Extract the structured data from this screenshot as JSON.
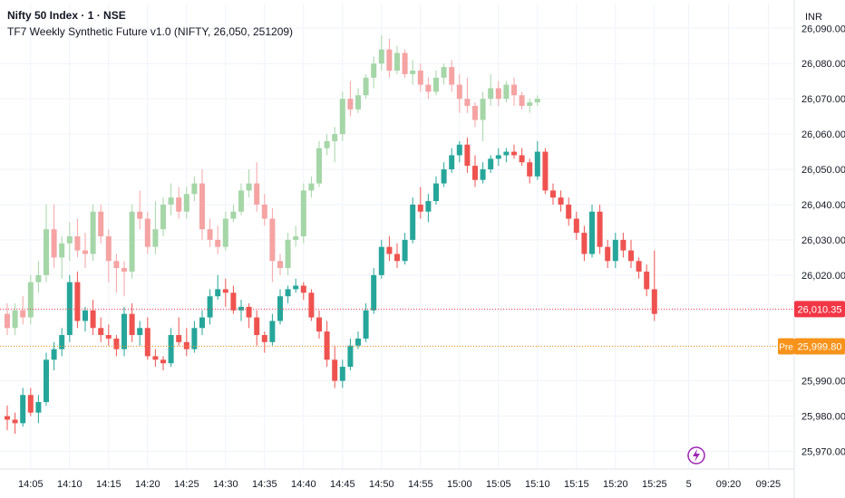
{
  "symbol_title": "Nifty 50 Index · 1 · NSE",
  "indicator_title": "TF7 Weekly Synthetic Future v1.0 (NIFTY, 26,050, 251209)",
  "currency_label": "INR",
  "pre_badge_label": "Pre",
  "colors": {
    "up_main": "#26a69a",
    "down_main": "#ef5350",
    "up_synth": "#a5d6a7",
    "down_synth": "#f5a3a3",
    "last_price": "#f23645",
    "pre_price": "#f7931a",
    "grid": "#f0f3fa",
    "text": "#131722",
    "lightning": "#9c27b0"
  },
  "icons": {
    "lightning": "lightning-bolt-icon"
  },
  "chart_data": {
    "type": "candlestick",
    "ylim": [
      25965,
      26097
    ],
    "yticks": [
      25970,
      25980,
      25990,
      26000,
      26010,
      26020,
      26030,
      26040,
      26050,
      26060,
      26070,
      26080,
      26090
    ],
    "ytick_labels": [
      "25,970.00",
      "25,980.00",
      "25,990.00",
      "26,000.00",
      "26,010.00",
      "26,020.00",
      "26,030.00",
      "26,040.00",
      "26,050.00",
      "26,060.00",
      "26,070.00",
      "26,080.00",
      "26,090.00"
    ],
    "xtick_labels": [
      {
        "index": 3,
        "label": "14:05"
      },
      {
        "index": 8,
        "label": "14:10"
      },
      {
        "index": 13,
        "label": "14:15"
      },
      {
        "index": 18,
        "label": "14:20"
      },
      {
        "index": 23,
        "label": "14:25"
      },
      {
        "index": 28,
        "label": "14:30"
      },
      {
        "index": 33,
        "label": "14:35"
      },
      {
        "index": 38,
        "label": "14:40"
      },
      {
        "index": 43,
        "label": "14:45"
      },
      {
        "index": 48,
        "label": "14:50"
      },
      {
        "index": 53,
        "label": "14:55"
      },
      {
        "index": 58,
        "label": "15:00"
      },
      {
        "index": 63,
        "label": "15:05"
      },
      {
        "index": 68,
        "label": "15:10"
      },
      {
        "index": 73,
        "label": "15:15"
      },
      {
        "index": 78,
        "label": "15:20"
      },
      {
        "index": 83,
        "label": "15:25"
      },
      {
        "index": 87.4,
        "label": "5"
      },
      {
        "index": 92.5,
        "label": "09:20"
      },
      {
        "index": 97.6,
        "label": "09:25"
      }
    ],
    "last_price": 26010.35,
    "last_price_label": "26,010.35",
    "pre_price": 25999.8,
    "pre_price_label": "25,999.80",
    "series": [
      {
        "name": "Nifty 50 Index",
        "candles": [
          [
            25980,
            25983,
            25976,
            25979
          ],
          [
            25979,
            25981,
            25975,
            25978
          ],
          [
            25978,
            25988,
            25977,
            25986
          ],
          [
            25986,
            25988,
            25980,
            25981
          ],
          [
            25981,
            25986,
            25978,
            25984
          ],
          [
            25984,
            25998,
            25983,
            25996
          ],
          [
            25996,
            26001,
            25993,
            25999
          ],
          [
            25999,
            26005,
            25997,
            26003
          ],
          [
            26003,
            26020,
            26001,
            26018
          ],
          [
            26018,
            26021,
            26005,
            26007
          ],
          [
            26007,
            26011,
            26004,
            26010
          ],
          [
            26010,
            26013,
            26003,
            26005
          ],
          [
            26005,
            26008,
            26001,
            26003
          ],
          [
            26003,
            26006,
            26000,
            26002
          ],
          [
            26002,
            26003,
            25997,
            25999
          ],
          [
            25999,
            26011,
            25997,
            26009
          ],
          [
            26009,
            26012,
            26001,
            26003
          ],
          [
            26003,
            26007,
            26000,
            26005
          ],
          [
            26005,
            26008,
            25996,
            25997
          ],
          [
            25997,
            25999,
            25994,
            25996
          ],
          [
            25996,
            25997,
            25993,
            25995
          ],
          [
            25995,
            26005,
            25994,
            26003
          ],
          [
            26003,
            26008,
            26000,
            26001
          ],
          [
            26001,
            26005,
            25997,
            25999
          ],
          [
            25999,
            26007,
            25998,
            26005
          ],
          [
            26005,
            26010,
            26003,
            26008
          ],
          [
            26008,
            26016,
            26006,
            26014
          ],
          [
            26014,
            26020,
            26013,
            26016
          ],
          [
            26016,
            26019,
            26011,
            26015
          ],
          [
            26015,
            26017,
            26009,
            26010
          ],
          [
            26010,
            26013,
            26007,
            26011
          ],
          [
            26011,
            26012,
            26005,
            26008
          ],
          [
            26008,
            26010,
            26000,
            26003
          ],
          [
            26003,
            26004,
            25998,
            26001
          ],
          [
            26001,
            26009,
            26000,
            26007
          ],
          [
            26007,
            26016,
            26006,
            26014
          ],
          [
            26014,
            26017,
            26012,
            26016
          ],
          [
            26016,
            26019,
            26015,
            26017
          ],
          [
            26017,
            26018,
            26013,
            26015
          ],
          [
            26015,
            26016,
            26007,
            26008
          ],
          [
            26008,
            26010,
            26002,
            26004
          ],
          [
            26004,
            26007,
            25994,
            25996
          ],
          [
            25996,
            26000,
            25988,
            25990
          ],
          [
            25990,
            25996,
            25988,
            25994
          ],
          [
            25994,
            26002,
            25993,
            26000
          ],
          [
            26000,
            26004,
            25999,
            26002
          ],
          [
            26002,
            26012,
            26001,
            26010
          ],
          [
            26010,
            26022,
            26009,
            26020
          ],
          [
            26020,
            26030,
            26019,
            26028
          ],
          [
            26028,
            26031,
            26024,
            26026
          ],
          [
            26026,
            26029,
            26022,
            26024
          ],
          [
            26024,
            26032,
            26023,
            26030
          ],
          [
            26030,
            26042,
            26029,
            26040
          ],
          [
            26040,
            26045,
            26036,
            26038
          ],
          [
            26038,
            26043,
            26035,
            26041
          ],
          [
            26041,
            26048,
            26040,
            26046
          ],
          [
            26046,
            26052,
            26045,
            26050
          ],
          [
            26050,
            26056,
            26049,
            26054
          ],
          [
            26054,
            26058,
            26052,
            26057
          ],
          [
            26057,
            26059,
            26049,
            26051
          ],
          [
            26051,
            26054,
            26045,
            26047
          ],
          [
            26047,
            26052,
            26046,
            26050
          ],
          [
            26050,
            26054,
            26049,
            26053
          ],
          [
            26053,
            26056,
            26051,
            26054
          ],
          [
            26054,
            26056,
            26052,
            26055
          ],
          [
            26055,
            26057,
            26053,
            26054
          ],
          [
            26054,
            26056,
            26051,
            26052
          ],
          [
            26052,
            26053,
            26046,
            26048
          ],
          [
            26048,
            26058,
            26047,
            26055
          ],
          [
            26055,
            26056,
            26043,
            26044
          ],
          [
            26044,
            26046,
            26040,
            26042
          ],
          [
            26042,
            26044,
            26038,
            26040
          ],
          [
            26040,
            26042,
            26034,
            26036
          ],
          [
            26036,
            26038,
            26030,
            26032
          ],
          [
            26032,
            26034,
            26024,
            26026
          ],
          [
            26026,
            26040,
            26025,
            26038
          ],
          [
            26038,
            26040,
            26026,
            26028
          ],
          [
            26028,
            26030,
            26022,
            26024
          ],
          [
            26024,
            26032,
            26022,
            26030
          ],
          [
            26030,
            26032,
            26025,
            26027
          ],
          [
            26027,
            26030,
            26022,
            26024
          ],
          [
            26024,
            26025,
            26019,
            26021
          ],
          [
            26021,
            26023,
            26014,
            26016
          ],
          [
            26016,
            26027,
            26007,
            26009
          ]
        ]
      },
      {
        "name": "TF7 Weekly Synthetic Future v1.0",
        "candles": [
          [
            26009,
            26012,
            26003,
            26005
          ],
          [
            26005,
            26012,
            26003,
            26010
          ],
          [
            26010,
            26014,
            26006,
            26008
          ],
          [
            26008,
            26020,
            26006,
            26018
          ],
          [
            26018,
            26024,
            26015,
            26020
          ],
          [
            26020,
            26040,
            26018,
            26033
          ],
          [
            26033,
            26040,
            26022,
            26025
          ],
          [
            26025,
            26031,
            26019,
            26029
          ],
          [
            26029,
            26035,
            26024,
            26031
          ],
          [
            26031,
            26036,
            26025,
            26027
          ],
          [
            26027,
            26032,
            26022,
            26026
          ],
          [
            26026,
            26040,
            26024,
            26038
          ],
          [
            26038,
            26040,
            26029,
            26031
          ],
          [
            26031,
            26033,
            26018,
            26024
          ],
          [
            26024,
            26026,
            26015,
            26022
          ],
          [
            26022,
            26024,
            26014,
            26021
          ],
          [
            26021,
            26040,
            26019,
            26038
          ],
          [
            26038,
            26044,
            26033,
            26036
          ],
          [
            26036,
            26038,
            26026,
            26028
          ],
          [
            26028,
            26041,
            26026,
            26033
          ],
          [
            26033,
            26042,
            26031,
            26040
          ],
          [
            26040,
            26046,
            26037,
            26042
          ],
          [
            26042,
            26045,
            26036,
            26038
          ],
          [
            26038,
            26045,
            26036,
            26043
          ],
          [
            26043,
            26048,
            26041,
            26046
          ],
          [
            26046,
            26050,
            26030,
            26033
          ],
          [
            26033,
            26036,
            26028,
            26030
          ],
          [
            26030,
            26034,
            26026,
            26028
          ],
          [
            26028,
            26038,
            26027,
            26036
          ],
          [
            26036,
            26040,
            26035,
            26038
          ],
          [
            26038,
            26046,
            26037,
            26044
          ],
          [
            26044,
            26050,
            26042,
            26046
          ],
          [
            26046,
            26052,
            26038,
            26040
          ],
          [
            26040,
            26043,
            26034,
            26036
          ],
          [
            26036,
            26039,
            26018,
            26024
          ],
          [
            26024,
            26026,
            26020,
            26022
          ],
          [
            26022,
            26032,
            26020,
            26030
          ],
          [
            26030,
            26034,
            26028,
            26031
          ],
          [
            26031,
            26046,
            26029,
            26044
          ],
          [
            26044,
            26048,
            26042,
            26046
          ],
          [
            26046,
            26058,
            26045,
            26056
          ],
          [
            26056,
            26060,
            26054,
            26058
          ],
          [
            26058,
            26062,
            26052,
            26060
          ],
          [
            26060,
            26072,
            26058,
            26070
          ],
          [
            26070,
            26075,
            26065,
            26067
          ],
          [
            26067,
            26073,
            26066,
            26071
          ],
          [
            26071,
            26077,
            26070,
            26076
          ],
          [
            26076,
            26082,
            26073,
            26080
          ],
          [
            26080,
            26088,
            26078,
            26084
          ],
          [
            26084,
            26087,
            26076,
            26078
          ],
          [
            26078,
            26085,
            26077,
            26083
          ],
          [
            26083,
            26084,
            26076,
            26077
          ],
          [
            26077,
            26081,
            26074,
            26078
          ],
          [
            26078,
            26080,
            26072,
            26074
          ],
          [
            26074,
            26076,
            26070,
            26072
          ],
          [
            26072,
            26078,
            26071,
            26076
          ],
          [
            26076,
            26080,
            26074,
            26079
          ],
          [
            26079,
            26081,
            26072,
            26074
          ],
          [
            26074,
            26077,
            26066,
            26070
          ],
          [
            26070,
            26076,
            26066,
            26068
          ],
          [
            26068,
            26069,
            26062,
            26064
          ],
          [
            26064,
            26072,
            26058,
            26070
          ],
          [
            26070,
            26077,
            26068,
            26073
          ],
          [
            26073,
            26075,
            26068,
            26070
          ],
          [
            26070,
            26075,
            26069,
            26074
          ],
          [
            26074,
            26076,
            26068,
            26071
          ],
          [
            26071,
            26072,
            26067,
            26068
          ],
          [
            26068,
            26070,
            26066,
            26069
          ],
          [
            26069,
            26071,
            26068,
            26070
          ]
        ]
      }
    ]
  }
}
